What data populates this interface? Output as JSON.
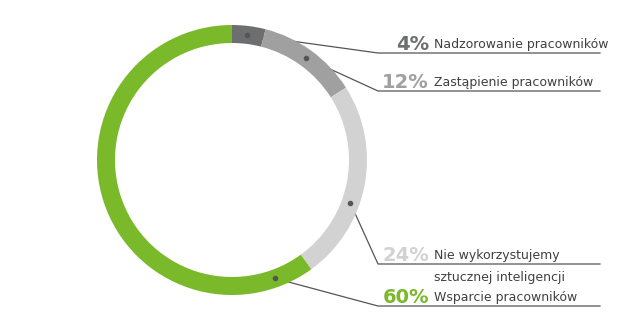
{
  "chart_data": {
    "type": "donut",
    "categories": [
      "Nadzorowanie pracowników",
      "Zastąpienie pracowników",
      "Nie wykorzystujemy\nsztucznej inteligencji",
      "Wsparcie pracowników"
    ],
    "values": [
      4,
      12,
      24,
      60
    ],
    "value_labels": [
      "4%",
      "12%",
      "24%",
      "60%"
    ],
    "colors": [
      "#6d6e70",
      "#a0a0a0",
      "#d2d2d2",
      "#7ab929"
    ],
    "data_labels": true
  }
}
